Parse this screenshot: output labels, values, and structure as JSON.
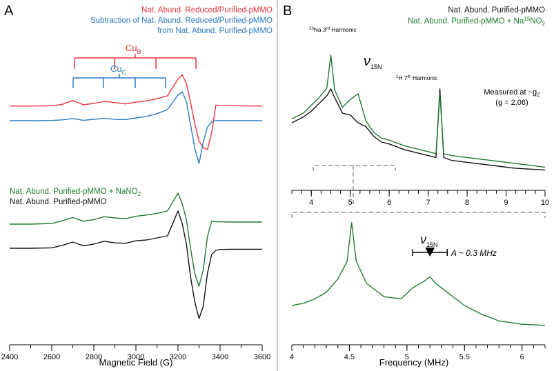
{
  "colors": {
    "red": "#e8343a",
    "blue": "#2b7bc4",
    "green": "#1e7a2e",
    "black": "#111111",
    "gray": "#777777"
  },
  "panelA": {
    "label": "A",
    "legend_top": [
      {
        "text": "Nat. Abund. Reduced/Purified-pMMO",
        "color": "red"
      },
      {
        "text": "Subtraction of Nat. Abund. Reduced/Purified-pMMO",
        "color": "blue"
      },
      {
        "text": "from Nat. Abund. Purified-pMMO",
        "color": "blue"
      }
    ],
    "legend_bottom": [
      {
        "text": "Nat. Abund. Purified-pMMO + NaNO",
        "sub": "2",
        "color": "green"
      },
      {
        "text": "Nat. Abund. Purified-pMMO",
        "sub": "",
        "color": "black"
      }
    ],
    "cuB": {
      "label": "Cu",
      "sub": "B"
    },
    "cuC": {
      "label": "Cu",
      "sub": "C"
    }
  },
  "panelB": {
    "label": "B",
    "legend": [
      {
        "text": "Nat. Abund. Purified-pMMO",
        "color": "black"
      },
      {
        "text": "Nat. Abund. Purified-pMMO + Na",
        "sup": "15",
        "tail": "NO",
        "sub": "2",
        "color": "green"
      }
    ],
    "annotations": {
      "na": {
        "sup": "23",
        "text": "Na 3",
        "sup2": "rd",
        "tail": " Harmonic"
      },
      "h": {
        "sup": "1",
        "text": "H 7",
        "sup2": "th",
        "tail": " Harmonic"
      },
      "measured_line1": "Measured at ~g",
      "measured_sub": "2",
      "measured_line2": "(g = 2.06)",
      "nu": "ν",
      "nu_sub": "15N",
      "coupling": "A ~ 0.3 MHz"
    }
  },
  "chart_data": [
    {
      "id": "panelA",
      "type": "line",
      "xlabel": "Magnetic Field (G)",
      "ylabel": "",
      "xlim": [
        2400,
        3600
      ],
      "xticks": [
        2400,
        2600,
        2800,
        3000,
        3200,
        3400,
        3600
      ],
      "x": [
        2400,
        2500,
        2600,
        2650,
        2700,
        2750,
        2800,
        2850,
        2900,
        2950,
        3000,
        3050,
        3100,
        3150,
        3200,
        3220,
        3240,
        3260,
        3280,
        3300,
        3320,
        3340,
        3360,
        3380,
        3400,
        3450,
        3500,
        3550,
        3600
      ],
      "series": [
        {
          "name": "Nat. Abund. Reduced/Purified-pMMO",
          "color": "red",
          "values": [
            0.4,
            0.4,
            0.5,
            1.2,
            3.0,
            1.0,
            1.6,
            2.6,
            2.0,
            1.4,
            2.2,
            2.8,
            3.8,
            5.2,
            13.0,
            15.0,
            11.0,
            2.0,
            -8.0,
            -16.0,
            -19.0,
            -20.0,
            -12.0,
            0.8,
            0.7,
            0.6,
            0.5,
            0.4,
            0.4
          ]
        },
        {
          "name": "Subtraction of Nat. Abund. Reduced/Purified-pMMO from Nat. Abund. Purified-pMMO",
          "color": "blue",
          "values": [
            0.0,
            0.0,
            0.1,
            0.4,
            1.0,
            0.2,
            0.6,
            1.1,
            0.6,
            0.5,
            1.3,
            2.0,
            3.3,
            5.2,
            12.0,
            13.5,
            9.0,
            -2.0,
            -13.0,
            -20.0,
            -10.0,
            -3.0,
            -0.5,
            0.0,
            0.0,
            0.0,
            0.0,
            0.0,
            0.0
          ]
        },
        {
          "name": "Nat. Abund. Purified-pMMO + NaNO2",
          "color": "green",
          "values": [
            0.0,
            0.0,
            0.3,
            1.6,
            3.2,
            1.4,
            2.2,
            3.6,
            3.0,
            2.6,
            3.8,
            4.4,
            5.2,
            6.4,
            15.0,
            10.0,
            2.0,
            -12.0,
            -24.0,
            -30.0,
            -22.0,
            -6.0,
            1.5,
            1.2,
            1.1,
            1.0,
            1.0,
            1.0,
            1.0
          ]
        },
        {
          "name": "Nat. Abund. Purified-pMMO",
          "color": "black",
          "values": [
            0.0,
            0.0,
            0.2,
            1.4,
            3.0,
            1.2,
            2.0,
            3.4,
            2.6,
            2.4,
            3.6,
            4.0,
            5.0,
            6.0,
            18.0,
            12.0,
            2.0,
            -14.0,
            -26.0,
            -34.0,
            -28.0,
            -12.0,
            -3.0,
            -1.0,
            -0.6,
            -0.5,
            -0.5,
            -0.5,
            -0.5
          ]
        }
      ]
    },
    {
      "id": "panelB_top",
      "type": "line",
      "xlabel": "",
      "xlim": [
        3.5,
        10
      ],
      "xticks": [
        4,
        5,
        6,
        7,
        8,
        9,
        10
      ],
      "x": [
        3.5,
        3.8,
        4.0,
        4.2,
        4.4,
        4.5,
        4.6,
        4.8,
        5.0,
        5.2,
        5.4,
        5.6,
        5.8,
        6.0,
        6.4,
        6.8,
        7.2,
        7.3,
        7.4,
        7.6,
        8.0,
        8.4,
        8.8,
        9.2,
        9.6,
        10.0
      ],
      "series": [
        {
          "name": "Nat. Abund. Purified-pMMO",
          "color": "black",
          "values": [
            5.0,
            5.6,
            6.2,
            7.0,
            7.8,
            8.5,
            7.6,
            6.0,
            5.8,
            5.0,
            4.6,
            3.6,
            3.0,
            2.8,
            2.2,
            1.8,
            1.4,
            8.5,
            1.4,
            1.1,
            0.9,
            0.7,
            0.5,
            0.3,
            0.2,
            0.1
          ]
        },
        {
          "name": "Nat. Abund. Purified-pMMO + Na15NO2",
          "color": "green",
          "values": [
            5.4,
            6.0,
            6.8,
            7.6,
            8.6,
            12.0,
            8.4,
            6.6,
            7.4,
            8.0,
            5.2,
            4.0,
            3.4,
            3.2,
            2.6,
            2.2,
            1.8,
            8.0,
            1.8,
            1.6,
            1.4,
            1.2,
            1.0,
            0.8,
            0.6,
            0.4
          ]
        }
      ]
    },
    {
      "id": "panelB_bottom",
      "type": "line",
      "xlabel": "Frequency (MHz)",
      "xlim": [
        4,
        6.2
      ],
      "xticks": [
        4,
        4.5,
        5,
        5.5,
        6
      ],
      "x": [
        4.0,
        4.1,
        4.2,
        4.3,
        4.4,
        4.48,
        4.52,
        4.56,
        4.65,
        4.8,
        4.95,
        5.05,
        5.15,
        5.2,
        5.25,
        5.35,
        5.5,
        5.65,
        5.8,
        6.0,
        6.2
      ],
      "series": [
        {
          "name": "Nat. Abund. Purified-pMMO + Na15NO2",
          "color": "green",
          "values": [
            2.0,
            2.2,
            2.6,
            3.2,
            4.4,
            6.0,
            9.5,
            6.0,
            4.0,
            2.8,
            2.6,
            3.6,
            4.2,
            4.6,
            4.0,
            3.2,
            2.0,
            1.2,
            0.6,
            0.3,
            0.2
          ]
        }
      ],
      "marker": {
        "center": 5.2,
        "half_width": 0.15,
        "label": "A ~ 0.3 MHz"
      }
    }
  ]
}
